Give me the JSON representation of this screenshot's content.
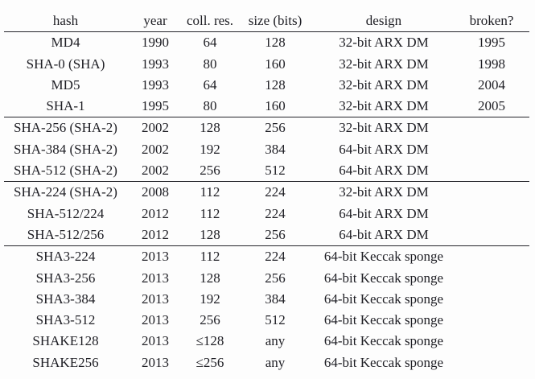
{
  "table": {
    "columns": [
      {
        "key": "hash",
        "label": "hash"
      },
      {
        "key": "year",
        "label": "year"
      },
      {
        "key": "coll_res",
        "label": "coll. res."
      },
      {
        "key": "size",
        "label": "size (bits)"
      },
      {
        "key": "design",
        "label": "design"
      },
      {
        "key": "broken",
        "label": "broken?"
      }
    ],
    "groups": [
      {
        "name": "broken-legacy",
        "rows": [
          [
            "MD4",
            "1990",
            "64",
            "128",
            "32-bit ARX DM",
            "1995"
          ],
          [
            "SHA-0 (SHA)",
            "1993",
            "80",
            "160",
            "32-bit ARX DM",
            "1998"
          ],
          [
            "MD5",
            "1993",
            "64",
            "128",
            "32-bit ARX DM",
            "2004"
          ],
          [
            "SHA-1",
            "1995",
            "80",
            "160",
            "32-bit ARX DM",
            "2005"
          ]
        ]
      },
      {
        "name": "sha2-original",
        "rows": [
          [
            "SHA-256 (SHA-2)",
            "2002",
            "128",
            "256",
            "32-bit ARX DM",
            ""
          ],
          [
            "SHA-384 (SHA-2)",
            "2002",
            "192",
            "384",
            "64-bit ARX DM",
            ""
          ],
          [
            "SHA-512 (SHA-2)",
            "2002",
            "256",
            "512",
            "64-bit ARX DM",
            ""
          ]
        ]
      },
      {
        "name": "sha2-later",
        "rows": [
          [
            "SHA-224 (SHA-2)",
            "2008",
            "112",
            "224",
            "32-bit ARX DM",
            ""
          ],
          [
            "SHA-512/224",
            "2012",
            "112",
            "224",
            "64-bit ARX DM",
            ""
          ],
          [
            "SHA-512/256",
            "2012",
            "128",
            "256",
            "64-bit ARX DM",
            ""
          ]
        ]
      },
      {
        "name": "sha3-keccak",
        "rows": [
          [
            "SHA3-224",
            "2013",
            "112",
            "224",
            "64-bit Keccak sponge",
            ""
          ],
          [
            "SHA3-256",
            "2013",
            "128",
            "256",
            "64-bit Keccak sponge",
            ""
          ],
          [
            "SHA3-384",
            "2013",
            "192",
            "384",
            "64-bit Keccak sponge",
            ""
          ],
          [
            "SHA3-512",
            "2013",
            "256",
            "512",
            "64-bit Keccak sponge",
            ""
          ],
          [
            "SHAKE128",
            "2013",
            "≤128",
            "any",
            "64-bit Keccak sponge",
            ""
          ],
          [
            "SHAKE256",
            "2013",
            "≤256",
            "any",
            "64-bit Keccak sponge",
            ""
          ]
        ]
      }
    ]
  },
  "colors": {
    "text": "#1e1e24",
    "rule": "#24242a",
    "background": "#fdfdfd"
  }
}
